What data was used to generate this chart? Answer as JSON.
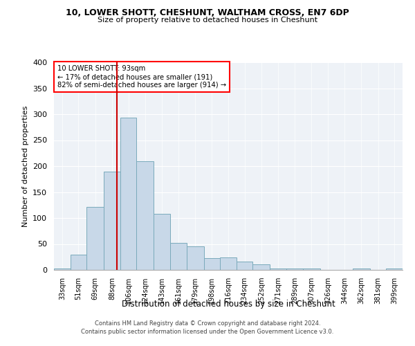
{
  "title1": "10, LOWER SHOTT, CHESHUNT, WALTHAM CROSS, EN7 6DP",
  "title2": "Size of property relative to detached houses in Cheshunt",
  "xlabel": "Distribution of detached houses by size in Cheshunt",
  "ylabel": "Number of detached properties",
  "footnote1": "Contains HM Land Registry data © Crown copyright and database right 2024.",
  "footnote2": "Contains public sector information licensed under the Open Government Licence v3.0.",
  "annotation_line1": "10 LOWER SHOTT: 93sqm",
  "annotation_line2": "← 17% of detached houses are smaller (191)",
  "annotation_line3": "82% of semi-detached houses are larger (914) →",
  "bar_color": "#c8d8e8",
  "bar_edge_color": "#7aaabb",
  "vline_color": "#cc0000",
  "background_color": "#eef2f7",
  "categories": [
    "33sqm",
    "51sqm",
    "69sqm",
    "88sqm",
    "106sqm",
    "124sqm",
    "143sqm",
    "161sqm",
    "179sqm",
    "198sqm",
    "216sqm",
    "234sqm",
    "252sqm",
    "271sqm",
    "289sqm",
    "307sqm",
    "326sqm",
    "344sqm",
    "362sqm",
    "381sqm",
    "399sqm"
  ],
  "values": [
    3,
    30,
    122,
    190,
    293,
    210,
    108,
    52,
    45,
    23,
    24,
    16,
    11,
    3,
    3,
    3,
    0,
    0,
    3,
    0,
    3
  ],
  "bin_edges": [
    24,
    42,
    60,
    79,
    97,
    115,
    134,
    152,
    170,
    189,
    207,
    225,
    243,
    262,
    280,
    298,
    317,
    335,
    353,
    372,
    390,
    408
  ],
  "ylim": [
    0,
    400
  ],
  "yticks": [
    0,
    50,
    100,
    150,
    200,
    250,
    300,
    350,
    400
  ],
  "vline_x": 93
}
